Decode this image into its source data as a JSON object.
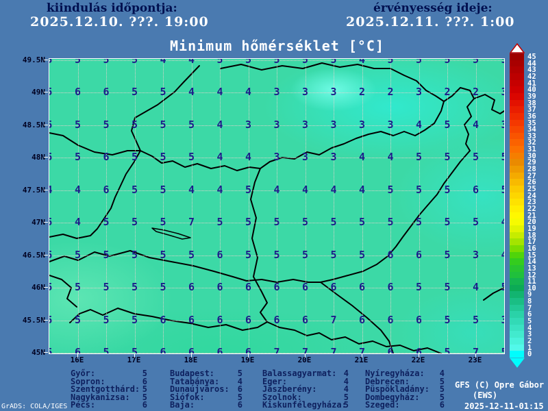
{
  "header": {
    "start_label": "kiindulás időpontja:",
    "start_datetime": "2025.12.10. ???. 19:00",
    "valid_label": "érvényesség ideje:",
    "valid_datetime": "2025.12.11. ???. 1:00"
  },
  "title": "Minimum hőmérséklet [°C]",
  "map": {
    "lat_labels": [
      "49.5N",
      "49N",
      "48.5N",
      "48N",
      "47.5N",
      "47N",
      "46.5N",
      "46N",
      "45.5N",
      "45N"
    ],
    "lon_labels": [
      "16E",
      "17E",
      "18E",
      "19E",
      "20E",
      "21E",
      "22E",
      "23E"
    ],
    "grid": {
      "cols": 17,
      "rows": 10,
      "values": [
        [
          5,
          5,
          5,
          5,
          4,
          4,
          5,
          5,
          5,
          5,
          5,
          4,
          5,
          5,
          5,
          5,
          5
        ],
        [
          5,
          6,
          6,
          5,
          5,
          4,
          4,
          4,
          3,
          3,
          3,
          2,
          2,
          3,
          2,
          2,
          3
        ],
        [
          5,
          5,
          5,
          5,
          5,
          5,
          4,
          3,
          3,
          3,
          3,
          3,
          3,
          4,
          5,
          4,
          3
        ],
        [
          5,
          5,
          6,
          5,
          5,
          5,
          4,
          4,
          3,
          3,
          3,
          4,
          4,
          5,
          5,
          5,
          5
        ],
        [
          4,
          4,
          6,
          5,
          5,
          4,
          4,
          5,
          4,
          4,
          4,
          4,
          5,
          5,
          5,
          6,
          5
        ],
        [
          5,
          4,
          5,
          5,
          5,
          7,
          5,
          5,
          5,
          5,
          5,
          5,
          5,
          5,
          5,
          5,
          4
        ],
        [
          5,
          5,
          5,
          5,
          5,
          5,
          6,
          5,
          5,
          5,
          5,
          5,
          6,
          6,
          5,
          3,
          4
        ],
        [
          5,
          5,
          5,
          5,
          5,
          6,
          6,
          6,
          6,
          6,
          6,
          6,
          6,
          5,
          5,
          4,
          5
        ],
        [
          5,
          5,
          5,
          5,
          6,
          6,
          6,
          6,
          6,
          6,
          7,
          6,
          6,
          6,
          5,
          5,
          3
        ],
        [
          5,
          6,
          5,
          5,
          6,
          6,
          6,
          6,
          7,
          7,
          7,
          7,
          6,
          6,
          5,
          7,
          5
        ]
      ]
    }
  },
  "colorbar": {
    "labels": [
      "45",
      "44",
      "43",
      "42",
      "41",
      "40",
      "39",
      "38",
      "37",
      "36",
      "35",
      "34",
      "33",
      "32",
      "31",
      "30",
      "29",
      "28",
      "27",
      "26",
      "25",
      "24",
      "23",
      "22",
      "21",
      "20",
      "19",
      "18",
      "17",
      "16",
      "15",
      "14",
      "13",
      "12",
      "11",
      "10",
      "9",
      "8",
      "7",
      "6",
      "5",
      "4",
      "3",
      "2",
      "1",
      "0"
    ],
    "colors": [
      "#9e0000",
      "#a80000",
      "#b20000",
      "#bc0000",
      "#c60000",
      "#d00000",
      "#da0600",
      "#e31200",
      "#ea1e00",
      "#f02a00",
      "#f43800",
      "#f74600",
      "#f95400",
      "#fb6200",
      "#fc7000",
      "#f57e00",
      "#ea8a00",
      "#ef9a00",
      "#f4aa00",
      "#f8ba00",
      "#fbca00",
      "#fdd600",
      "#fee200",
      "#ffee00",
      "#fff800",
      "#f6fb00",
      "#e2f400",
      "#c6ec00",
      "#a4e400",
      "#7cdc00",
      "#50d40a",
      "#34cc1e",
      "#28c430",
      "#20c03c",
      "#14b450",
      "#0caa56",
      "#12b470",
      "#1abe84",
      "#22c896",
      "#2ad2a8",
      "#32dab6",
      "#3ae2c2",
      "#42eace",
      "#4af2dc",
      "#52f8ea",
      "#00fdfd"
    ]
  },
  "stations": {
    "columns": [
      [
        {
          "name": "Győr:",
          "value": "5"
        },
        {
          "name": "Sopron:",
          "value": "6"
        },
        {
          "name": "Szentgotthárd:",
          "value": "5"
        },
        {
          "name": "Nagykanizsa:",
          "value": "5"
        },
        {
          "name": "Pécs:",
          "value": "6"
        }
      ],
      [
        {
          "name": "Budapest:",
          "value": "5"
        },
        {
          "name": "Tatabánya:",
          "value": "4"
        },
        {
          "name": "Dunaújváros:",
          "value": "6"
        },
        {
          "name": "Siófok:",
          "value": "5"
        },
        {
          "name": "Baja:",
          "value": "6"
        }
      ],
      [
        {
          "name": "Balassagyarmat:",
          "value": "4"
        },
        {
          "name": "Eger:",
          "value": "4"
        },
        {
          "name": "Jászberény:",
          "value": "4"
        },
        {
          "name": "Szolnok:",
          "value": "5"
        },
        {
          "name": "Kiskunfélegyháza:",
          "value": "5"
        }
      ],
      [
        {
          "name": "Nyíregyháza:",
          "value": "4"
        },
        {
          "name": "Debrecen:",
          "value": "5"
        },
        {
          "name": "Püspökladány:",
          "value": "5"
        },
        {
          "name": "Dombegyház:",
          "value": "5"
        },
        {
          "name": "Szeged:",
          "value": "6"
        }
      ]
    ]
  },
  "credits": {
    "model": "GFS (C) Opre Gábor",
    "org": "(EWS)",
    "generated": "2025-12-11-01:15",
    "grads_stamp": "GrADS: COLA/IGES"
  },
  "colors": {
    "background": "#4a7ab0",
    "map_base": "#3cd9a6",
    "value_text": "#1c1c8a",
    "header_text": "#001050",
    "border_line": "#000000"
  },
  "chart_data": {
    "type": "heatmap",
    "title": "Minimum hőmérséklet [°C]",
    "units": "°C",
    "x": [
      15.5,
      16,
      16.5,
      17,
      17.5,
      18,
      18.5,
      19,
      19.5,
      20,
      20.5,
      21,
      21.5,
      22,
      22.5,
      23,
      23.5
    ],
    "y": [
      49.5,
      49,
      48.5,
      48,
      47.5,
      47,
      46.5,
      46,
      45.5,
      45
    ],
    "x_tick_labels": [
      "16E",
      "17E",
      "18E",
      "19E",
      "20E",
      "21E",
      "22E",
      "23E"
    ],
    "y_tick_labels": [
      "49.5N",
      "49N",
      "48.5N",
      "48N",
      "47.5N",
      "47N",
      "46.5N",
      "46N",
      "45.5N",
      "45N"
    ],
    "values": [
      [
        5,
        5,
        5,
        5,
        4,
        4,
        5,
        5,
        5,
        5,
        5,
        4,
        5,
        5,
        5,
        5,
        5
      ],
      [
        5,
        6,
        6,
        5,
        5,
        4,
        4,
        4,
        3,
        3,
        3,
        2,
        2,
        3,
        2,
        2,
        3
      ],
      [
        5,
        5,
        5,
        5,
        5,
        5,
        4,
        3,
        3,
        3,
        3,
        3,
        3,
        4,
        5,
        4,
        3
      ],
      [
        5,
        5,
        6,
        5,
        5,
        5,
        4,
        4,
        3,
        3,
        3,
        4,
        4,
        5,
        5,
        5,
        5
      ],
      [
        4,
        4,
        6,
        5,
        5,
        4,
        4,
        5,
        4,
        4,
        4,
        4,
        5,
        5,
        5,
        6,
        5
      ],
      [
        5,
        4,
        5,
        5,
        5,
        7,
        5,
        5,
        5,
        5,
        5,
        5,
        5,
        5,
        5,
        5,
        4
      ],
      [
        5,
        5,
        5,
        5,
        5,
        5,
        6,
        5,
        5,
        5,
        5,
        5,
        6,
        6,
        5,
        3,
        4
      ],
      [
        5,
        5,
        5,
        5,
        5,
        6,
        6,
        6,
        6,
        6,
        6,
        6,
        6,
        5,
        5,
        4,
        5
      ],
      [
        5,
        5,
        5,
        5,
        6,
        6,
        6,
        6,
        6,
        6,
        7,
        6,
        6,
        6,
        5,
        5,
        3
      ],
      [
        5,
        6,
        5,
        5,
        6,
        6,
        6,
        6,
        7,
        7,
        7,
        7,
        6,
        6,
        5,
        7,
        5
      ]
    ],
    "colorbar_range": [
      0,
      45
    ],
    "legend_position": "right",
    "grid": true
  }
}
